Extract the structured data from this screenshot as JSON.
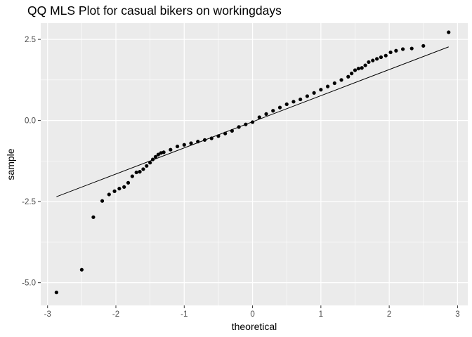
{
  "chart_data": {
    "type": "scatter",
    "title": "QQ MLS Plot for casual bikers on workingdays",
    "xlabel": "theoretical",
    "ylabel": "sample",
    "xlim": [
      -3.1,
      3.15
    ],
    "ylim": [
      -5.7,
      3.0
    ],
    "x_ticks": [
      -3,
      -2,
      -1,
      0,
      1,
      2,
      3
    ],
    "x_tick_labels": [
      "-3",
      "-2",
      "-1",
      "0",
      "1",
      "2",
      "3"
    ],
    "y_ticks": [
      -5,
      -2.5,
      0,
      2.5
    ],
    "y_tick_labels": [
      "-5.0",
      "-2.5",
      "0.0",
      "2.5"
    ],
    "grid": true,
    "legend": "none",
    "colors": {
      "panel": "#EBEBEB",
      "grid": "#FFFFFF",
      "points": "#000000",
      "line": "#000000"
    },
    "reference_line": {
      "x": [
        -2.87,
        2.87
      ],
      "y": [
        -2.35,
        2.27
      ]
    },
    "points": {
      "x": [
        -2.87,
        -2.5,
        -2.33,
        -2.2,
        -2.1,
        -2.02,
        -1.95,
        -1.88,
        -1.82,
        -1.76,
        -1.7,
        -1.65,
        -1.6,
        -1.55,
        -1.5,
        -1.46,
        -1.42,
        -1.38,
        -1.34,
        -1.3,
        -1.2,
        -1.1,
        -1.0,
        -0.9,
        -0.8,
        -0.7,
        -0.6,
        -0.5,
        -0.4,
        -0.3,
        -0.2,
        -0.1,
        0.0,
        0.1,
        0.2,
        0.3,
        0.4,
        0.5,
        0.6,
        0.7,
        0.8,
        0.9,
        1.0,
        1.1,
        1.2,
        1.3,
        1.4,
        1.45,
        1.5,
        1.55,
        1.6,
        1.65,
        1.7,
        1.76,
        1.82,
        1.88,
        1.95,
        2.02,
        2.1,
        2.2,
        2.33,
        2.5,
        2.87
      ],
      "y": [
        -5.3,
        -4.6,
        -2.98,
        -2.48,
        -2.28,
        -2.18,
        -2.1,
        -2.05,
        -1.92,
        -1.72,
        -1.6,
        -1.58,
        -1.5,
        -1.4,
        -1.3,
        -1.2,
        -1.12,
        -1.05,
        -1.0,
        -0.98,
        -0.9,
        -0.8,
        -0.75,
        -0.7,
        -0.65,
        -0.6,
        -0.55,
        -0.48,
        -0.4,
        -0.32,
        -0.2,
        -0.12,
        -0.05,
        0.1,
        0.2,
        0.3,
        0.4,
        0.5,
        0.58,
        0.65,
        0.75,
        0.85,
        0.95,
        1.05,
        1.15,
        1.25,
        1.35,
        1.45,
        1.55,
        1.6,
        1.62,
        1.7,
        1.8,
        1.85,
        1.9,
        1.95,
        2.0,
        2.1,
        2.15,
        2.2,
        2.22,
        2.3,
        2.72
      ]
    }
  }
}
